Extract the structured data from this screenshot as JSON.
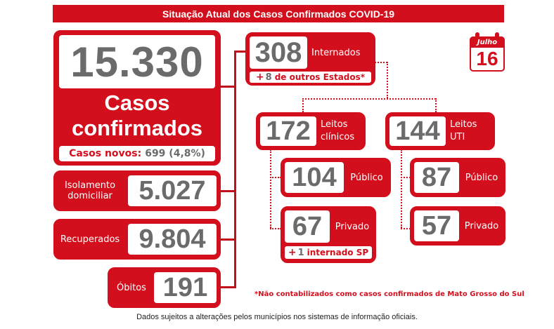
{
  "header": {
    "title": "Situação Atual dos Casos Confirmados COVID-19"
  },
  "calendar": {
    "month": "Julho",
    "day": "16"
  },
  "confirmed": {
    "total": "15.330",
    "label_line1": "Casos",
    "label_line2": "confirmados",
    "new_label": "Casos novos:",
    "new_value": "699 (4,8%)"
  },
  "isolation": {
    "label_line1": "Isolamento",
    "label_line2": "domiciliar",
    "value": "5.027"
  },
  "recovered": {
    "label": "Recuperados",
    "value": "9.804"
  },
  "deaths": {
    "label": "Óbitos",
    "value": "191"
  },
  "hospitalized": {
    "value": "308",
    "label": "Internados",
    "other_states_plus": "+",
    "other_states_value": "8",
    "other_states_text": "de outros Estados*"
  },
  "clinical": {
    "value": "172",
    "label_line1": "Leitos",
    "label_line2": "clínicos",
    "public": {
      "value": "104",
      "label": "Público"
    },
    "private": {
      "value": "67",
      "label": "Privado",
      "note_plus": "+",
      "note_value": "1",
      "note_text": "internado SP"
    }
  },
  "icu": {
    "value": "144",
    "label_line1": "Leitos",
    "label_line2": "UTI",
    "public": {
      "value": "87",
      "label": "Público"
    },
    "private": {
      "value": "57",
      "label": "Privado"
    }
  },
  "footnote_red": "*Não contabilizados como casos confirmados de Mato Grosso do Sul",
  "footer": "Dados sujeitos a alterações pelos municípios nos sistemas de informação oficiais.",
  "colors": {
    "accent": "#d40f1d",
    "number_gray": "#6b6b6b"
  }
}
